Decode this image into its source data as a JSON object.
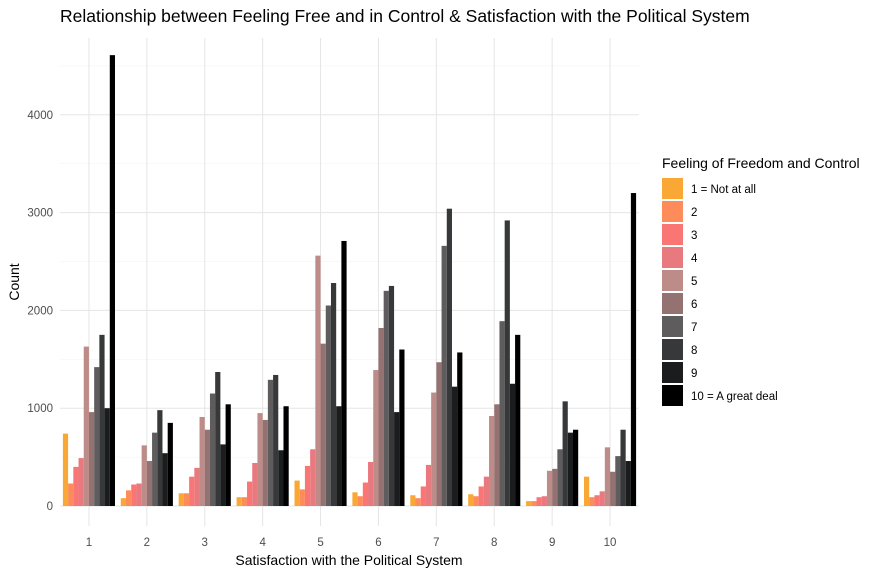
{
  "chart_data": {
    "type": "bar",
    "title": "Relationship between Feeling Free and in Control & Satisfaction with the Political System",
    "xlabel": "Satisfaction with the Political System",
    "ylabel": "Count",
    "ylim": [
      0,
      4750
    ],
    "yticks": [
      0,
      1000,
      2000,
      3000,
      4000
    ],
    "grid": true,
    "legend": {
      "title": "Feeling of Freedom and Control",
      "position": "right"
    },
    "categories": [
      "1",
      "2",
      "3",
      "4",
      "5",
      "6",
      "7",
      "8",
      "9",
      "10"
    ],
    "series": [
      {
        "name": "1 = Not at all",
        "color": "#F9A836",
        "values": [
          740,
          80,
          130,
          90,
          260,
          140,
          110,
          120,
          50,
          300
        ]
      },
      {
        "name": "2",
        "color": "#FD8C5A",
        "values": [
          230,
          160,
          130,
          90,
          170,
          100,
          80,
          100,
          50,
          90
        ]
      },
      {
        "name": "3",
        "color": "#F97674",
        "values": [
          400,
          220,
          300,
          250,
          410,
          240,
          200,
          200,
          90,
          110
        ]
      },
      {
        "name": "4",
        "color": "#E8797F",
        "values": [
          490,
          230,
          390,
          440,
          580,
          450,
          420,
          300,
          100,
          150
        ]
      },
      {
        "name": "5",
        "color": "#BD8B88",
        "values": [
          1630,
          620,
          910,
          950,
          2560,
          1390,
          1160,
          920,
          360,
          600
        ]
      },
      {
        "name": "6",
        "color": "#957272",
        "values": [
          960,
          460,
          780,
          880,
          1660,
          1820,
          1470,
          1040,
          380,
          350
        ]
      },
      {
        "name": "7",
        "color": "#5F5C5D",
        "values": [
          1420,
          750,
          1150,
          1290,
          2050,
          2200,
          2660,
          1890,
          580,
          510
        ]
      },
      {
        "name": "8",
        "color": "#373839",
        "values": [
          1750,
          980,
          1370,
          1340,
          2280,
          2250,
          3040,
          2920,
          1070,
          780
        ]
      },
      {
        "name": "9",
        "color": "#1B1C1D",
        "values": [
          1000,
          540,
          630,
          570,
          1020,
          960,
          1220,
          1250,
          750,
          460
        ]
      },
      {
        "name": "10 = A great deal",
        "color": "#000000",
        "values": [
          4610,
          850,
          1040,
          1020,
          2710,
          1600,
          1570,
          1750,
          780,
          3200
        ]
      }
    ]
  }
}
